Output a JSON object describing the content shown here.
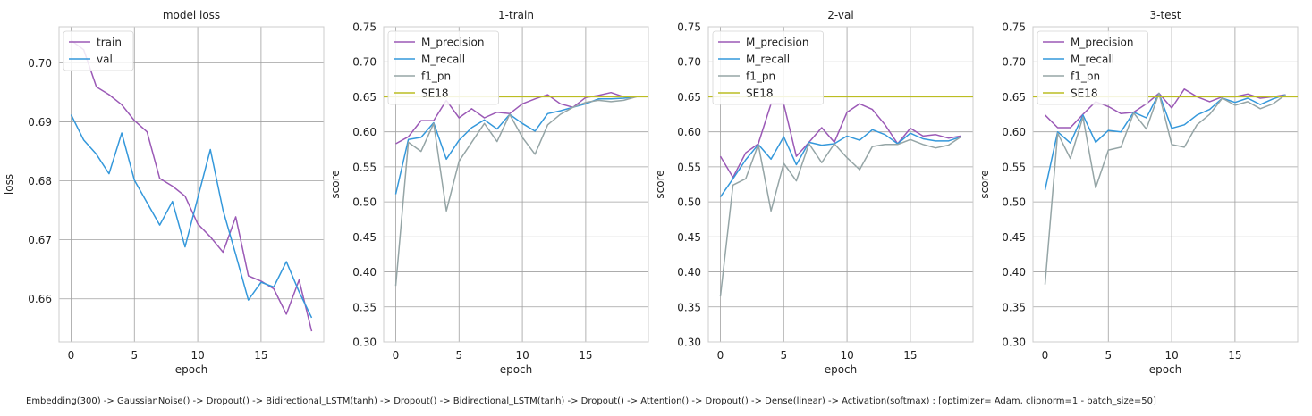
{
  "caption": "Embedding(300) -> GaussianNoise() -> Dropout() -> Bidirectional_LSTM(tanh) -> Dropout() -> Bidirectional_LSTM(tanh) -> Dropout() -> Attention() -> Dropout() -> Dense(linear) -> Activation(softmax) : [optimizer= Adam, clipnorm=1 - batch_size=50]",
  "colors": {
    "purple": "#9b59b6",
    "blue": "#3498db",
    "gray": "#95a5a6",
    "olive": "#bcbd22",
    "grid": "#a0a0a0",
    "frame": "#cccccc"
  },
  "chart_data": [
    {
      "type": "line",
      "title": "model loss",
      "xlabel": "epoch",
      "ylabel": "loss",
      "xlim": [
        -0.95,
        19.95
      ],
      "ylim": [
        0.6527,
        0.7061
      ],
      "xticks": [
        0,
        5,
        10,
        15
      ],
      "yticks": [
        0.66,
        0.67,
        0.68,
        0.69,
        0.7
      ],
      "ytick_labels": [
        "0.66",
        "0.67",
        "0.68",
        "0.69",
        "0.70"
      ],
      "legend": "top-left",
      "x": [
        0,
        1,
        2,
        3,
        4,
        5,
        6,
        7,
        8,
        9,
        10,
        11,
        12,
        13,
        14,
        15,
        16,
        17,
        18,
        19
      ],
      "series": [
        {
          "name": "train",
          "color": "#9b59b6",
          "values": [
            0.7038,
            0.7022,
            0.6959,
            0.6946,
            0.6929,
            0.6902,
            0.6883,
            0.6804,
            0.6791,
            0.6774,
            0.6727,
            0.6705,
            0.6679,
            0.6739,
            0.6639,
            0.663,
            0.6617,
            0.6574,
            0.6632,
            0.6545
          ]
        },
        {
          "name": "val",
          "color": "#3498db",
          "values": [
            0.6912,
            0.6869,
            0.6845,
            0.6812,
            0.6881,
            0.6801,
            0.6763,
            0.6725,
            0.6765,
            0.6688,
            0.6771,
            0.6853,
            0.675,
            0.6675,
            0.6598,
            0.6628,
            0.662,
            0.6663,
            0.6612,
            0.6568
          ]
        }
      ]
    },
    {
      "type": "line",
      "title": "1-train",
      "xlabel": "epoch",
      "ylabel": "score",
      "xlim": [
        -0.95,
        19.95
      ],
      "ylim": [
        0.3,
        0.75
      ],
      "xticks": [
        0,
        5,
        10,
        15
      ],
      "yticks": [
        0.3,
        0.35,
        0.4,
        0.45,
        0.5,
        0.55,
        0.6,
        0.65,
        0.7,
        0.75
      ],
      "ytick_labels": [
        "0.30",
        "0.35",
        "0.40",
        "0.45",
        "0.50",
        "0.55",
        "0.60",
        "0.65",
        "0.70",
        "0.75"
      ],
      "legend": "top-left",
      "x": [
        0,
        1,
        2,
        3,
        4,
        5,
        6,
        7,
        8,
        9,
        10,
        11,
        12,
        13,
        14,
        15,
        16,
        17,
        18,
        19
      ],
      "series": [
        {
          "name": "M_precision",
          "color": "#9b59b6",
          "values": [
            0.583,
            0.593,
            0.616,
            0.616,
            0.645,
            0.62,
            0.633,
            0.62,
            0.628,
            0.626,
            0.64,
            0.647,
            0.653,
            0.64,
            0.635,
            0.649,
            0.652,
            0.656,
            0.65,
            0.65
          ]
        },
        {
          "name": "M_recall",
          "color": "#3498db",
          "values": [
            0.511,
            0.589,
            0.592,
            0.613,
            0.561,
            0.588,
            0.606,
            0.617,
            0.604,
            0.625,
            0.612,
            0.601,
            0.626,
            0.63,
            0.635,
            0.64,
            0.647,
            0.647,
            0.648,
            0.65
          ]
        },
        {
          "name": "f1_pn",
          "color": "#95a5a6",
          "values": [
            0.38,
            0.585,
            0.572,
            0.612,
            0.487,
            0.558,
            0.585,
            0.612,
            0.586,
            0.625,
            0.592,
            0.568,
            0.61,
            0.625,
            0.635,
            0.642,
            0.645,
            0.643,
            0.645,
            0.65
          ]
        },
        {
          "name": "SE18",
          "color": "#bcbd22",
          "values": [
            0.65,
            0.65,
            0.65,
            0.65,
            0.65,
            0.65,
            0.65,
            0.65,
            0.65,
            0.65,
            0.65,
            0.65,
            0.65,
            0.65,
            0.65,
            0.65,
            0.65,
            0.65,
            0.65,
            0.65
          ]
        }
      ]
    },
    {
      "type": "line",
      "title": "2-val",
      "xlabel": "epoch",
      "ylabel": "score",
      "xlim": [
        -0.95,
        19.95
      ],
      "ylim": [
        0.3,
        0.75
      ],
      "xticks": [
        0,
        5,
        10,
        15
      ],
      "yticks": [
        0.3,
        0.35,
        0.4,
        0.45,
        0.5,
        0.55,
        0.6,
        0.65,
        0.7,
        0.75
      ],
      "ytick_labels": [
        "0.30",
        "0.35",
        "0.40",
        "0.45",
        "0.50",
        "0.55",
        "0.60",
        "0.65",
        "0.70",
        "0.75"
      ],
      "legend": "top-left",
      "x": [
        0,
        1,
        2,
        3,
        4,
        5,
        6,
        7,
        8,
        9,
        10,
        11,
        12,
        13,
        14,
        15,
        16,
        17,
        18,
        19
      ],
      "series": [
        {
          "name": "M_precision",
          "color": "#9b59b6",
          "values": [
            0.565,
            0.535,
            0.57,
            0.583,
            0.64,
            0.64,
            0.565,
            0.585,
            0.606,
            0.585,
            0.628,
            0.64,
            0.632,
            0.61,
            0.583,
            0.605,
            0.594,
            0.596,
            0.591,
            0.594
          ]
        },
        {
          "name": "M_recall",
          "color": "#3498db",
          "values": [
            0.507,
            0.533,
            0.56,
            0.582,
            0.561,
            0.593,
            0.553,
            0.585,
            0.581,
            0.583,
            0.594,
            0.588,
            0.603,
            0.596,
            0.583,
            0.598,
            0.59,
            0.587,
            0.587,
            0.593
          ]
        },
        {
          "name": "f1_pn",
          "color": "#95a5a6",
          "values": [
            0.365,
            0.524,
            0.533,
            0.582,
            0.487,
            0.555,
            0.53,
            0.583,
            0.556,
            0.583,
            0.563,
            0.546,
            0.579,
            0.582,
            0.582,
            0.589,
            0.582,
            0.577,
            0.581,
            0.593
          ]
        },
        {
          "name": "SE18",
          "color": "#bcbd22",
          "values": [
            0.65,
            0.65,
            0.65,
            0.65,
            0.65,
            0.65,
            0.65,
            0.65,
            0.65,
            0.65,
            0.65,
            0.65,
            0.65,
            0.65,
            0.65,
            0.65,
            0.65,
            0.65,
            0.65,
            0.65
          ]
        }
      ]
    },
    {
      "type": "line",
      "title": "3-test",
      "xlabel": "epoch",
      "ylabel": "score",
      "xlim": [
        -0.95,
        19.95
      ],
      "ylim": [
        0.3,
        0.75
      ],
      "xticks": [
        0,
        5,
        10,
        15
      ],
      "yticks": [
        0.3,
        0.35,
        0.4,
        0.45,
        0.5,
        0.55,
        0.6,
        0.65,
        0.7,
        0.75
      ],
      "ytick_labels": [
        "0.30",
        "0.35",
        "0.40",
        "0.45",
        "0.50",
        "0.55",
        "0.60",
        "0.65",
        "0.70",
        "0.75"
      ],
      "legend": "top-left",
      "x": [
        0,
        1,
        2,
        3,
        4,
        5,
        6,
        7,
        8,
        9,
        10,
        11,
        12,
        13,
        14,
        15,
        16,
        17,
        18,
        19
      ],
      "series": [
        {
          "name": "M_precision",
          "color": "#9b59b6",
          "values": [
            0.624,
            0.606,
            0.606,
            0.625,
            0.643,
            0.636,
            0.626,
            0.628,
            0.64,
            0.655,
            0.634,
            0.661,
            0.65,
            0.643,
            0.65,
            0.65,
            0.654,
            0.648,
            0.65,
            0.653
          ]
        },
        {
          "name": "M_recall",
          "color": "#3498db",
          "values": [
            0.517,
            0.6,
            0.584,
            0.624,
            0.585,
            0.602,
            0.6,
            0.628,
            0.62,
            0.655,
            0.605,
            0.61,
            0.624,
            0.632,
            0.648,
            0.642,
            0.648,
            0.639,
            0.647,
            0.653
          ]
        },
        {
          "name": "f1_pn",
          "color": "#95a5a6",
          "values": [
            0.382,
            0.598,
            0.562,
            0.621,
            0.52,
            0.574,
            0.578,
            0.627,
            0.604,
            0.655,
            0.582,
            0.578,
            0.61,
            0.625,
            0.648,
            0.638,
            0.643,
            0.633,
            0.64,
            0.653
          ]
        },
        {
          "name": "SE18",
          "color": "#bcbd22",
          "values": [
            0.65,
            0.65,
            0.65,
            0.65,
            0.65,
            0.65,
            0.65,
            0.65,
            0.65,
            0.65,
            0.65,
            0.65,
            0.65,
            0.65,
            0.65,
            0.65,
            0.65,
            0.65,
            0.65,
            0.65
          ]
        }
      ]
    }
  ]
}
